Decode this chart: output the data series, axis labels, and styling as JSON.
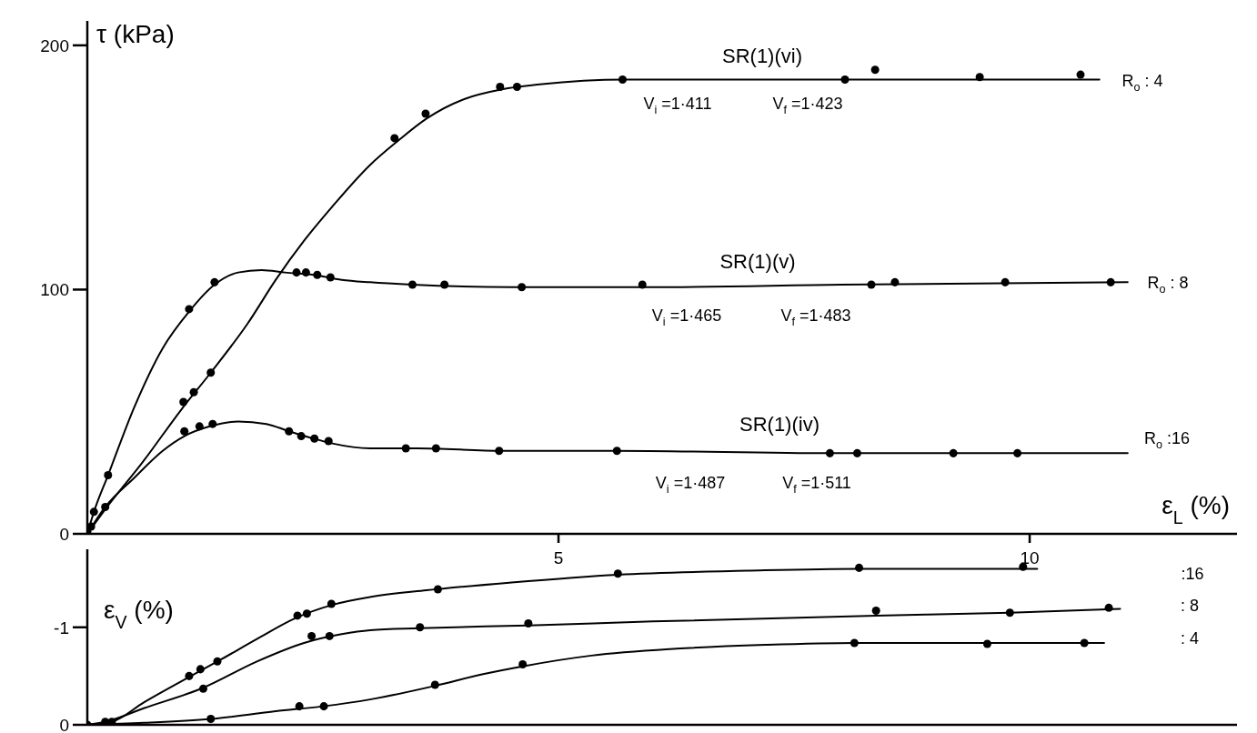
{
  "chart_data": [
    {
      "type": "scatter",
      "xlabel": "ε$_{L}$ (%)",
      "ylabel": "τ (kPa)",
      "xlim": [
        0,
        12.2
      ],
      "xticks": [
        5,
        10
      ],
      "ylim": [
        0,
        210
      ],
      "yticks": [
        0,
        100,
        200
      ],
      "marker": "circle",
      "series": [
        {
          "color": "#000000",
          "x": [
            0,
            1.02,
            1.13,
            1.31,
            3.26,
            3.59,
            4.38,
            4.56,
            5.68,
            8.04,
            8.36,
            9.47,
            10.54
          ],
          "values": [
            1,
            54,
            58,
            66,
            162,
            172,
            183,
            183,
            186,
            186,
            190,
            187,
            188
          ]
        },
        {
          "type": "line",
          "name": "SR(1)(vi)",
          "marker": "none",
          "color": "#000000",
          "x": [
            0,
            0.19,
            0.6,
            1.0,
            1.31,
            1.7,
            2.0,
            2.3,
            2.6,
            3.0,
            3.3,
            3.6,
            4.0,
            4.4,
            4.8,
            5.7,
            8.0,
            10.74
          ],
          "values": [
            0,
            10,
            30,
            51,
            66,
            86,
            104,
            120,
            134,
            151,
            161,
            170,
            178,
            182,
            184,
            186,
            186,
            186
          ]
        },
        {
          "color": "#000000",
          "x": [
            0.07,
            0.22,
            1.08,
            1.35,
            2.22,
            2.32,
            2.44,
            2.58,
            3.45,
            3.79,
            4.61,
            5.89,
            8.32,
            8.57,
            9.74,
            10.86
          ],
          "values": [
            9,
            24,
            92,
            103,
            107,
            107,
            106,
            105,
            102,
            102,
            101,
            102,
            102,
            103,
            103,
            103
          ]
        },
        {
          "type": "line",
          "name": "SR(1)(v)",
          "marker": "none",
          "color": "#000000",
          "x": [
            0,
            0.07,
            0.22,
            0.5,
            0.8,
            1.08,
            1.35,
            1.6,
            1.85,
            2.1,
            2.4,
            2.7,
            3.0,
            3.45,
            4.5,
            6.0,
            8.0,
            11.04
          ],
          "values": [
            0,
            9,
            24,
            52,
            76,
            91,
            102,
            107,
            108,
            107,
            106,
            104,
            103,
            102,
            101,
            101,
            102,
            103
          ]
        },
        {
          "color": "#000000",
          "x": [
            0.04,
            0.19,
            1.03,
            1.19,
            1.33,
            2.14,
            2.27,
            2.41,
            2.56,
            3.38,
            3.7,
            4.37,
            5.62,
            7.88,
            8.17,
            9.19,
            9.87
          ],
          "values": [
            3,
            11,
            42,
            44,
            45,
            42,
            40,
            39,
            38,
            35,
            35,
            34,
            34,
            33,
            33,
            33,
            33
          ]
        },
        {
          "type": "line",
          "name": "SR(1)(iv)",
          "marker": "none",
          "color": "#000000",
          "x": [
            0,
            0.19,
            0.5,
            0.8,
            1.03,
            1.3,
            1.6,
            1.9,
            2.14,
            2.4,
            2.6,
            3.0,
            3.5,
            4.4,
            5.6,
            7.9,
            11.04
          ],
          "values": [
            0,
            11,
            23,
            34,
            40,
            44,
            46,
            45,
            42,
            39,
            37,
            35,
            35,
            34,
            34,
            33,
            33
          ]
        }
      ],
      "annotations": [
        "V$_{i}$ =1·411",
        "V$_{f}$ =1·423",
        "R$_{o}$ : 4",
        "V$_{i}$ =1·465",
        "V$_{f}$ =1·483",
        "R$_{o}$ : 8",
        "V$_{i}$ =1·487",
        "V$_{f}$ =1·511",
        "R$_{o}$ :16"
      ]
    },
    {
      "type": "scatter",
      "ylabel": "ε$_{V}$ (%)",
      "xlim": [
        0,
        12.2
      ],
      "ylim": [
        0,
        -1.8
      ],
      "yticks": [
        0,
        -1
      ],
      "tick_labels": "y",
      "marker": "circle",
      "series": [
        {
          "color": "#000000",
          "x": [
            0,
            0.26,
            1.08,
            1.2,
            1.38,
            2.23,
            2.33,
            2.59,
            3.72,
            5.63,
            8.19,
            9.93
          ],
          "values": [
            0,
            -0.03,
            -0.5,
            -0.57,
            -0.65,
            -1.12,
            -1.14,
            -1.24,
            -1.39,
            -1.55,
            -1.61,
            -1.62
          ]
        },
        {
          "type": "line",
          "marker": "none",
          "color": "#000000",
          "x": [
            0,
            0.26,
            0.6,
            1.08,
            1.4,
            1.8,
            2.2,
            2.6,
            3.0,
            3.6,
            4.5,
            5.63,
            7.0,
            8.19,
            10.08
          ],
          "values": [
            0,
            -0.03,
            -0.23,
            -0.49,
            -0.66,
            -0.88,
            -1.09,
            -1.23,
            -1.31,
            -1.38,
            -1.46,
            -1.54,
            -1.58,
            -1.6,
            -1.6
          ]
        },
        {
          "color": "#000000",
          "x": [
            0.19,
            1.23,
            2.38,
            2.57,
            3.53,
            4.68,
            8.37,
            9.79,
            10.84
          ],
          "values": [
            -0.03,
            -0.37,
            -0.91,
            -0.91,
            -1.0,
            -1.04,
            -1.17,
            -1.15,
            -1.2
          ]
        },
        {
          "type": "line",
          "marker": "none",
          "color": "#000000",
          "x": [
            0,
            0.19,
            0.6,
            1.23,
            1.8,
            2.3,
            2.7,
            3.0,
            3.53,
            4.68,
            6.0,
            8.37,
            9.79,
            10.96
          ],
          "values": [
            0,
            -0.03,
            -0.17,
            -0.38,
            -0.65,
            -0.84,
            -0.93,
            -0.97,
            -0.99,
            -1.02,
            -1.06,
            -1.12,
            -1.15,
            -1.19
          ]
        },
        {
          "color": "#000000",
          "x": [
            1.31,
            2.25,
            2.51,
            3.69,
            4.62,
            8.14,
            9.55,
            10.58
          ],
          "values": [
            -0.06,
            -0.19,
            -0.19,
            -0.41,
            -0.62,
            -0.84,
            -0.83,
            -0.84
          ]
        },
        {
          "type": "line",
          "marker": "none",
          "color": "#000000",
          "x": [
            0,
            0.6,
            1.31,
            2.0,
            2.5,
            3.0,
            3.69,
            4.2,
            4.62,
            5.35,
            6.25,
            7.2,
            8.14,
            10.79
          ],
          "values": [
            0,
            -0.02,
            -0.06,
            -0.14,
            -0.19,
            -0.26,
            -0.4,
            -0.52,
            -0.6,
            -0.71,
            -0.78,
            -0.82,
            -0.84,
            -0.84
          ]
        }
      ],
      "annotations": [
        ":16",
        ": 8",
        ": 4"
      ]
    }
  ]
}
